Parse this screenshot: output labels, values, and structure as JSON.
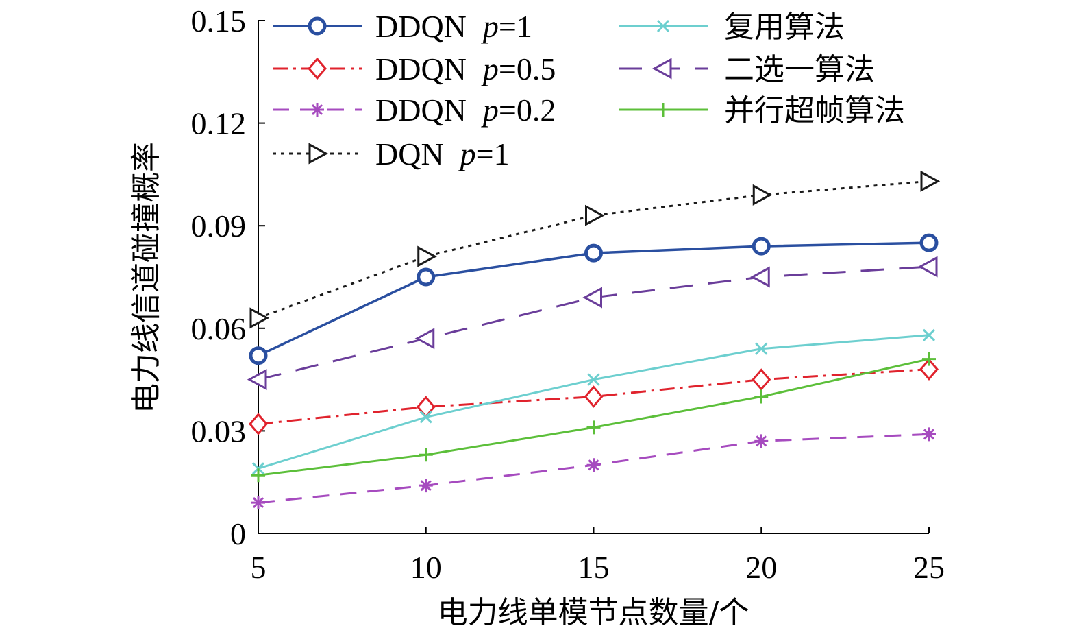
{
  "chart_data": {
    "type": "line",
    "title": "",
    "xlabel": "电力线单模节点数量/个",
    "ylabel": "电力线信道碰撞概率",
    "x": [
      5,
      10,
      15,
      20,
      25
    ],
    "xlim": [
      5,
      25
    ],
    "ylim": [
      0,
      0.15
    ],
    "xticks": [
      "5",
      "10",
      "15",
      "20",
      "25"
    ],
    "yticks": [
      "0",
      "0.03",
      "0.06",
      "0.09",
      "0.12",
      "0.15"
    ],
    "ytick_values": [
      0,
      0.03,
      0.06,
      0.09,
      0.12,
      0.15
    ],
    "grid": false,
    "legend_position": "top",
    "series": [
      {
        "name": "DDQN",
        "param": "p",
        "param_value": "=1",
        "color": "#2a4fa0",
        "dash": "solid",
        "marker": "circle",
        "values": [
          0.052,
          0.075,
          0.082,
          0.084,
          0.085
        ]
      },
      {
        "name": "DDQN",
        "param": "p",
        "param_value": "=0.5",
        "color": "#e0232d",
        "dash": "dashdot",
        "marker": "diamond",
        "values": [
          0.032,
          0.037,
          0.04,
          0.045,
          0.048
        ]
      },
      {
        "name": "DDQN",
        "param": "p",
        "param_value": "=0.2",
        "color": "#a64bbf",
        "dash": "dashed",
        "marker": "asterisk",
        "values": [
          0.009,
          0.014,
          0.02,
          0.027,
          0.029
        ]
      },
      {
        "name": "DQN",
        "param": "p",
        "param_value": "=1",
        "color": "#1a1a1a",
        "dash": "dotted",
        "marker": "triangle-right",
        "values": [
          0.063,
          0.081,
          0.093,
          0.099,
          0.103
        ]
      },
      {
        "name": "复用算法",
        "param": "",
        "param_value": "",
        "color": "#6dcfcf",
        "dash": "solid",
        "marker": "x",
        "values": [
          0.019,
          0.034,
          0.045,
          0.054,
          0.058
        ]
      },
      {
        "name": "二选一算法",
        "param": "",
        "param_value": "",
        "color": "#6a3d9a",
        "dash": "longdash",
        "marker": "triangle-left",
        "values": [
          0.045,
          0.057,
          0.069,
          0.075,
          0.078
        ]
      },
      {
        "name": "并行超帧算法",
        "param": "",
        "param_value": "",
        "color": "#5cbf3a",
        "dash": "solid",
        "marker": "plus",
        "values": [
          0.017,
          0.023,
          0.031,
          0.04,
          0.051
        ]
      }
    ]
  }
}
